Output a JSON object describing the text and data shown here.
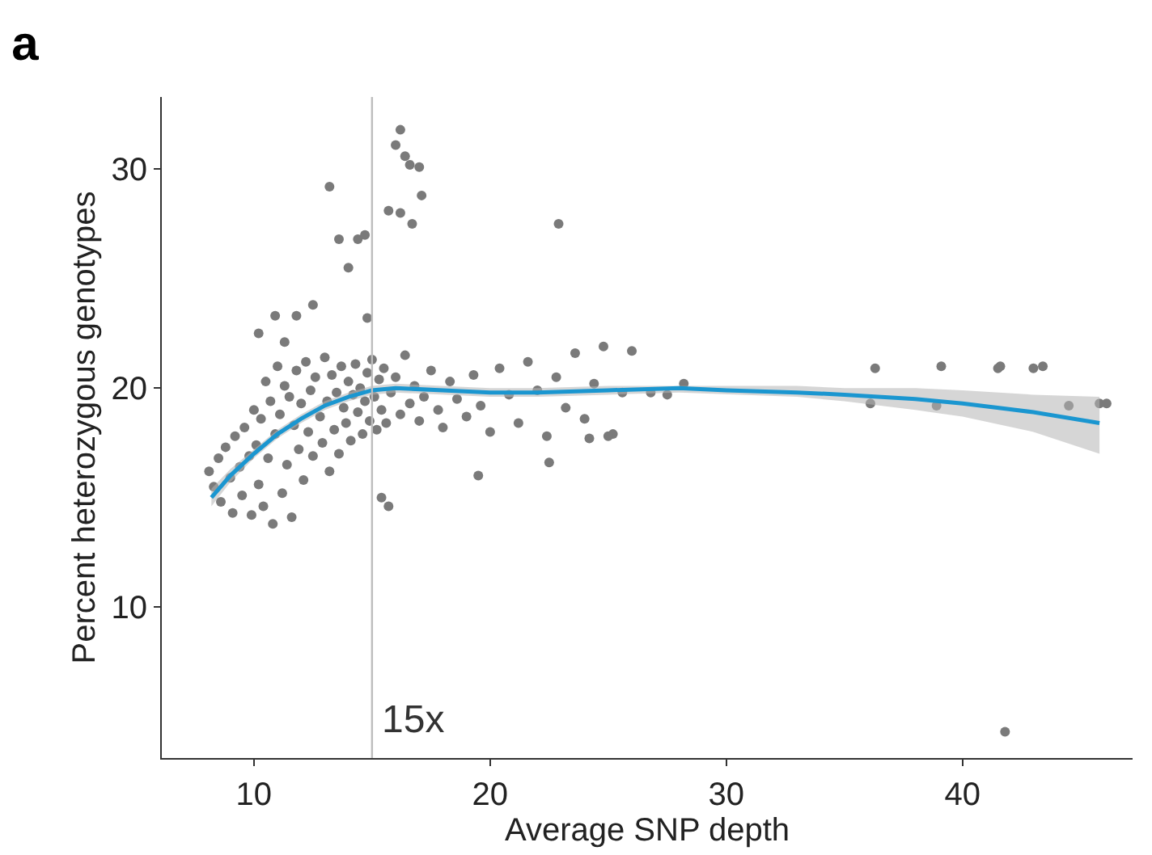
{
  "chart_data": {
    "type": "scatter",
    "title": "a",
    "xlabel": "Average SNP depth",
    "ylabel": "Percent heterozygous genotypes",
    "xlim": [
      6.1,
      47.2
    ],
    "ylim": [
      3.1,
      33.3
    ],
    "xticks": [
      10,
      20,
      30,
      40
    ],
    "yticks": [
      10,
      20,
      30
    ],
    "marker": "circle",
    "ref_lines": [
      {
        "axis": "x",
        "value": 15,
        "label": "15x",
        "color": "#bdbdbd"
      }
    ],
    "series": [
      {
        "color": "#7a7a7a",
        "x": [
          8.1,
          8.3,
          8.5,
          8.6,
          8.8,
          9.0,
          9.1,
          9.2,
          9.4,
          9.5,
          9.6,
          9.8,
          9.9,
          10.0,
          10.1,
          10.2,
          10.3,
          10.4,
          10.5,
          10.6,
          10.7,
          10.8,
          10.9,
          11.0,
          11.1,
          11.2,
          11.3,
          11.4,
          11.5,
          11.6,
          11.7,
          11.8,
          11.9,
          12.0,
          12.1,
          12.2,
          12.3,
          12.4,
          12.5,
          12.6,
          12.8,
          12.9,
          13.0,
          13.1,
          13.2,
          13.3,
          13.4,
          13.5,
          13.6,
          13.7,
          13.8,
          13.9,
          14.0,
          14.1,
          14.2,
          14.3,
          14.4,
          14.5,
          14.6,
          14.7,
          14.8,
          14.9,
          15.0,
          15.1,
          15.2,
          15.3,
          15.4,
          15.5,
          15.6,
          15.8,
          16.0,
          16.2,
          16.4,
          16.6,
          16.8,
          17.0,
          17.2,
          17.5,
          17.8,
          18.0,
          18.3,
          18.6,
          19.0,
          19.3,
          19.6,
          20.0,
          20.4,
          20.8,
          21.2,
          21.6,
          22.0,
          22.4,
          22.8,
          23.2,
          23.6,
          24.0,
          24.4,
          24.8,
          25.2,
          25.6,
          26.0,
          26.8,
          27.5,
          28.2,
          10.9,
          10.2,
          11.3,
          11.8,
          12.5,
          13.2,
          13.6,
          14.0,
          14.4,
          14.7,
          14.8,
          15.7,
          16.0,
          16.2,
          16.2,
          16.4,
          16.6,
          16.7,
          17.0,
          17.1,
          22.9,
          36.1,
          36.3,
          38.9,
          39.1,
          41.5,
          41.6,
          41.8,
          43.0,
          43.4,
          44.5,
          45.8,
          46.1,
          15.4,
          15.7,
          19.5,
          22.5,
          24.2,
          25.0
        ],
        "values": [
          16.2,
          15.5,
          16.8,
          14.8,
          17.3,
          15.9,
          14.3,
          17.8,
          16.4,
          15.1,
          18.2,
          16.9,
          14.2,
          19.0,
          17.4,
          15.6,
          18.6,
          14.6,
          20.3,
          16.8,
          19.4,
          13.8,
          17.9,
          21.0,
          18.8,
          15.2,
          20.1,
          16.5,
          19.6,
          14.1,
          18.3,
          20.8,
          17.2,
          19.3,
          15.8,
          21.2,
          18.0,
          19.9,
          16.9,
          20.5,
          18.7,
          17.5,
          21.4,
          19.4,
          16.2,
          20.6,
          18.1,
          19.8,
          17.0,
          21.0,
          19.1,
          18.4,
          20.3,
          17.6,
          19.7,
          21.1,
          18.9,
          20.0,
          17.9,
          19.4,
          20.7,
          18.5,
          21.3,
          19.6,
          18.1,
          20.4,
          19.0,
          20.9,
          18.4,
          19.8,
          20.5,
          18.8,
          21.5,
          19.3,
          20.1,
          18.5,
          19.6,
          20.8,
          19.0,
          18.2,
          20.3,
          19.5,
          18.7,
          20.6,
          19.2,
          18.0,
          20.9,
          19.7,
          18.4,
          21.2,
          19.9,
          17.8,
          20.5,
          19.1,
          21.6,
          18.6,
          20.2,
          21.9,
          17.9,
          19.8,
          21.7,
          19.8,
          19.7,
          20.2,
          23.3,
          22.5,
          22.1,
          23.3,
          23.8,
          29.2,
          26.8,
          25.5,
          26.8,
          27.0,
          23.2,
          28.1,
          31.1,
          31.8,
          28.0,
          30.6,
          30.2,
          27.5,
          30.1,
          28.8,
          27.5,
          19.3,
          20.9,
          19.2,
          21.0,
          20.9,
          21.0,
          4.3,
          20.9,
          21.0,
          19.2,
          19.3,
          19.3,
          15.0,
          14.6,
          16.0,
          16.6,
          17.7,
          17.8
        ]
      },
      {
        "type": "line",
        "color": "#1a96d0",
        "line_style": "solid",
        "marker": "none",
        "x": [
          8.2,
          9,
          10,
          11,
          12,
          13,
          14,
          15,
          16,
          18,
          20,
          22,
          25,
          28,
          30,
          33,
          35,
          38,
          40,
          43,
          45.8
        ],
        "values": [
          15.0,
          16.0,
          17.0,
          17.9,
          18.6,
          19.2,
          19.6,
          19.9,
          20.0,
          19.9,
          19.8,
          19.8,
          19.9,
          20.0,
          19.9,
          19.8,
          19.7,
          19.5,
          19.3,
          18.9,
          18.4
        ],
        "lower": [
          14.6,
          15.7,
          16.8,
          17.7,
          18.4,
          19.0,
          19.4,
          19.7,
          19.8,
          19.7,
          19.6,
          19.6,
          19.7,
          19.8,
          19.7,
          19.6,
          19.4,
          19.0,
          18.7,
          18.0,
          17.0
        ],
        "upper": [
          15.4,
          16.3,
          17.2,
          18.1,
          18.8,
          19.4,
          19.8,
          20.1,
          20.2,
          20.1,
          20.0,
          20.0,
          20.1,
          20.1,
          20.1,
          20.1,
          20.0,
          20.0,
          19.9,
          19.7,
          19.6
        ]
      }
    ]
  }
}
